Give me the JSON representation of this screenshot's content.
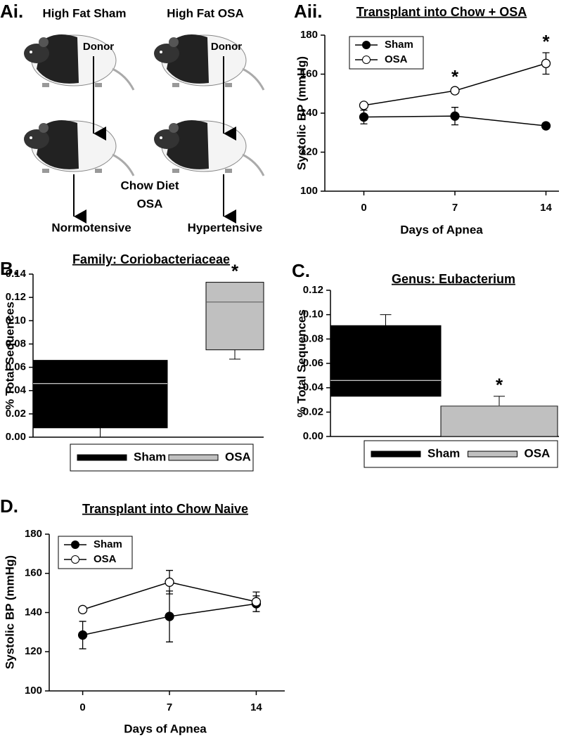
{
  "diagram": {
    "panel_label": "Ai.",
    "left_title": "High Fat Sham",
    "right_title": "High Fat OSA",
    "left_donor": "Donor",
    "right_donor": "Donor",
    "middle_line1": "Chow Diet",
    "middle_line2": "OSA",
    "left_outcome": "Normotensive",
    "right_outcome": "Hypertensive"
  },
  "chart_data": [
    {
      "type": "line",
      "panel_label": "Aii.",
      "title": "Transplant into Chow + OSA",
      "x_label": "Days of Apnea",
      "y_label": "Systolic BP (mmHg)",
      "xlim": [
        -3,
        15
      ],
      "xticks": [
        0,
        7,
        14
      ],
      "ylim": [
        100,
        180
      ],
      "yticks": [
        100,
        120,
        140,
        160,
        180
      ],
      "legend": "upper left",
      "series": [
        {
          "name": "Sham",
          "color": "#000000",
          "marker_fill": "#000000",
          "x": [
            0,
            7,
            14
          ],
          "values": [
            138,
            138.5,
            133.5
          ],
          "errors": [
            3.5,
            4.5,
            1.5
          ]
        },
        {
          "name": "OSA",
          "color": "#000000",
          "marker_fill": "#ffffff",
          "x": [
            0,
            7,
            14
          ],
          "values": [
            144,
            151.5,
            165.5
          ],
          "errors": [
            1,
            1.5,
            5.5
          ]
        }
      ],
      "annotations": [
        {
          "text": "*",
          "x": 7
        },
        {
          "text": "*",
          "x": 14
        }
      ]
    },
    {
      "type": "box",
      "panel_label": "B.",
      "title": "Family: Coriobacteriaceae",
      "y_label": "% Total Sequences",
      "ylim": [
        0,
        0.14
      ],
      "yticks": [
        {
          "value": 0,
          "label": "0.00"
        },
        0.02,
        0.04,
        0.06,
        0.08,
        {
          "value": 0.1,
          "label": "0.10"
        },
        0.12,
        0.14
      ],
      "legend": "bottom",
      "series": [
        {
          "name": "Sham",
          "color": "#000000",
          "min": 0,
          "q1": 0.008,
          "median": 0.046,
          "q3": 0.066,
          "max": 0.066
        },
        {
          "name": "OSA",
          "color": "#c0c0c0",
          "min": 0.067,
          "q1": 0.075,
          "median": 0.116,
          "q3": 0.133,
          "max": 0.133
        }
      ],
      "annotations": [
        {
          "text": "*",
          "box": "OSA"
        }
      ]
    },
    {
      "type": "box",
      "panel_label": "C.",
      "title": "Genus: Eubacterium",
      "y_label": "% Total Sequences",
      "ylim": [
        0,
        0.12
      ],
      "yticks": [
        {
          "value": 0,
          "label": "0.00"
        },
        0.02,
        0.04,
        0.06,
        0.08,
        {
          "value": 0.1,
          "label": "0.10"
        },
        0.12
      ],
      "legend": "bottom",
      "series": [
        {
          "name": "Sham",
          "color": "#000000",
          "min": 0.033,
          "q1": 0.033,
          "median": 0.046,
          "q3": 0.091,
          "max": 0.1
        },
        {
          "name": "OSA",
          "color": "#c0c0c0",
          "min": 0,
          "q1": 0,
          "median": 0.025,
          "q3": 0.025,
          "max": 0.033
        }
      ],
      "annotations": [
        {
          "text": "*",
          "box": "OSA"
        }
      ]
    },
    {
      "type": "line",
      "panel_label": "D.",
      "title": "Transplant into Chow Naive",
      "x_label": "Days of Apnea",
      "y_label": "Systolic BP (mmHg)",
      "xlim": [
        -2.7,
        16.3
      ],
      "xticks": [
        0,
        7,
        14
      ],
      "ylim": [
        100,
        180
      ],
      "yticks": [
        100,
        120,
        140,
        160,
        180
      ],
      "legend": "upper left",
      "series": [
        {
          "name": "Sham",
          "color": "#000000",
          "marker_fill": "#000000",
          "x": [
            0,
            7,
            14
          ],
          "values": [
            128.5,
            138,
            144.5
          ],
          "errors": [
            7,
            13,
            4
          ]
        },
        {
          "name": "OSA",
          "color": "#000000",
          "marker_fill": "#ffffff",
          "x": [
            0,
            7,
            14
          ],
          "values": [
            141.5,
            155.5,
            145.5
          ],
          "errors": [
            1.5,
            6,
            5
          ]
        }
      ],
      "annotations": []
    }
  ]
}
